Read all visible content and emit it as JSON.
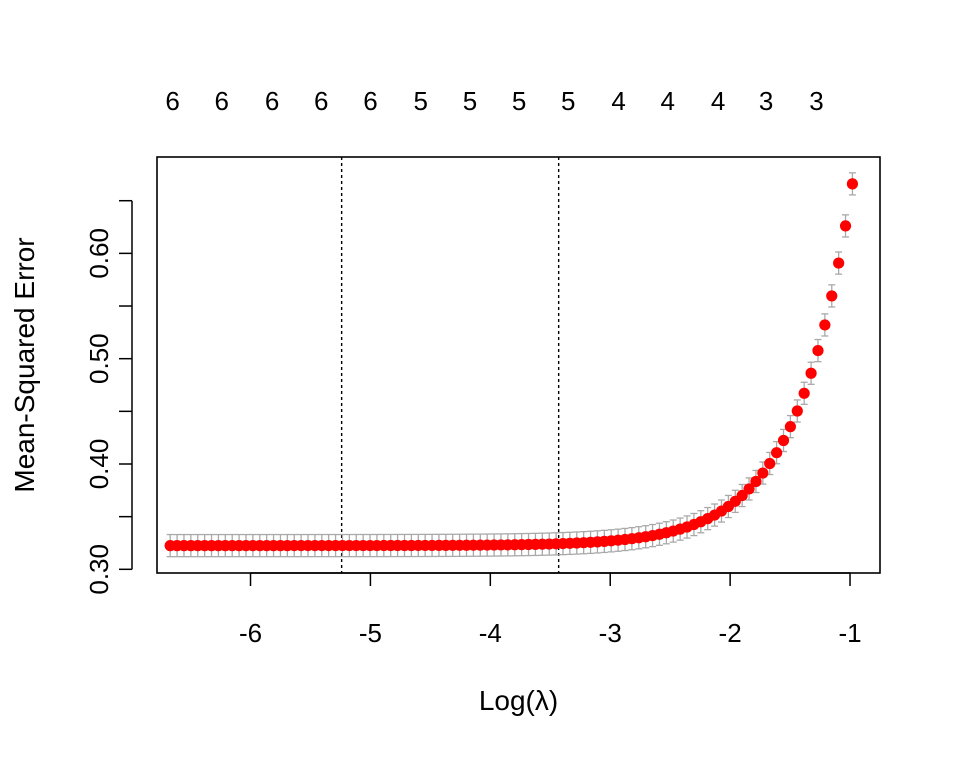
{
  "chart_data": {
    "type": "scatter",
    "title": "",
    "xlabel": "Log(λ)",
    "ylabel": "Mean-Squared Error",
    "xlim": [
      -6.78,
      -0.75
    ],
    "ylim": [
      0.2965,
      0.6915
    ],
    "x_ticks": [
      -6,
      -5,
      -4,
      -3,
      -2,
      -1
    ],
    "x_tick_labels": [
      "-6",
      "-5",
      "-4",
      "-3",
      "-2",
      "-1"
    ],
    "y_ticks": [
      0.3,
      0.35,
      0.4,
      0.45,
      0.5,
      0.55,
      0.6,
      0.65
    ],
    "y_tick_labels": [
      "0.30",
      "0.40",
      "0.50",
      "0.60"
    ],
    "y_labeled_ticks": [
      0.3,
      0.4,
      0.5,
      0.6
    ],
    "top_axis": {
      "positions": [
        -6.65,
        -6.24,
        -5.82,
        -5.41,
        -5.0,
        -4.58,
        -4.17,
        -3.76,
        -3.35,
        -2.93,
        -2.52,
        -2.1,
        -1.7,
        -1.28
      ],
      "labels": [
        "6",
        "6",
        "6",
        "6",
        "6",
        "5",
        "5",
        "5",
        "5",
        "4",
        "4",
        "4",
        "3",
        "3"
      ]
    },
    "reference_lines": [
      -5.24,
      -3.43
    ],
    "series": [
      {
        "curve": {
          "x_start": -6.67,
          "x_end": -0.98,
          "n_points": 100,
          "base": 0.3225,
          "amplitude": 0.3435,
          "growth_rate": 2.15
        },
        "error_band": 0.0105,
        "point_color": "#ff0000",
        "errorbar_color": "#a9a9a9"
      }
    ],
    "grid": false,
    "legend": "none"
  }
}
